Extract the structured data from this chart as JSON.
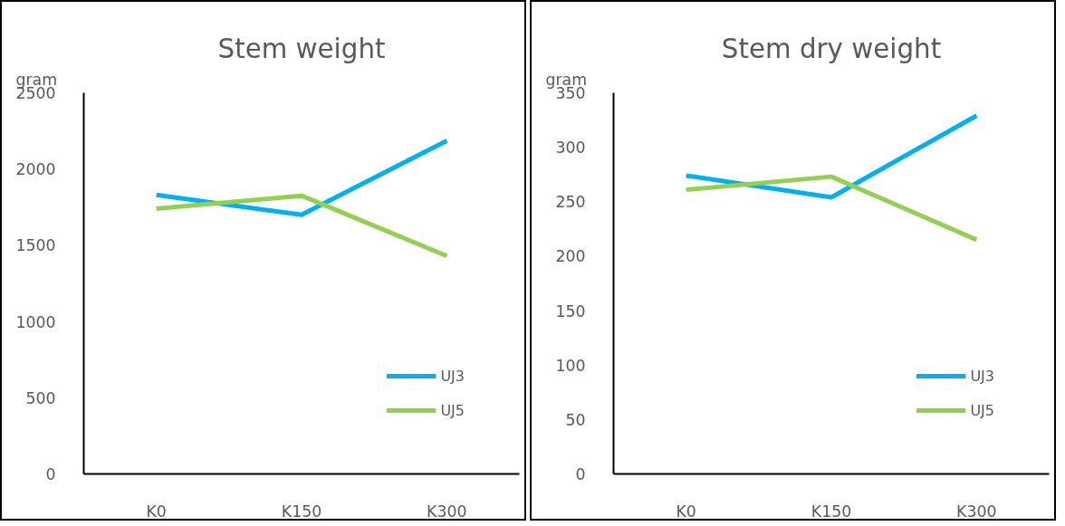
{
  "chart_data": [
    {
      "type": "line",
      "title": "Stem weight",
      "ylabel": "gram",
      "categories": [
        "K0",
        "K150",
        "K300"
      ],
      "series": [
        {
          "name": "UJ3",
          "color": "#00b0f0",
          "values": [
            1830,
            1700,
            2185
          ]
        },
        {
          "name": "UJ5",
          "color": "#92d050",
          "values": [
            1740,
            1825,
            1430
          ]
        }
      ],
      "ylim": [
        0,
        2500
      ],
      "yticks": [
        0,
        500,
        1000,
        1500,
        2000,
        2500
      ],
      "grid": false,
      "legend": "bottom right"
    },
    {
      "type": "line",
      "title": "Stem dry weight",
      "ylabel": "gram",
      "categories": [
        "K0",
        "K150",
        "K300"
      ],
      "series": [
        {
          "name": "UJ3",
          "color": "#00b0f0",
          "values": [
            274,
            254,
            329
          ]
        },
        {
          "name": "UJ5",
          "color": "#92d050",
          "values": [
            261,
            273,
            215
          ]
        }
      ],
      "ylim": [
        0,
        350
      ],
      "yticks": [
        0,
        50,
        100,
        150,
        200,
        250,
        300,
        350
      ],
      "grid": false,
      "legend": "bottom right"
    }
  ]
}
